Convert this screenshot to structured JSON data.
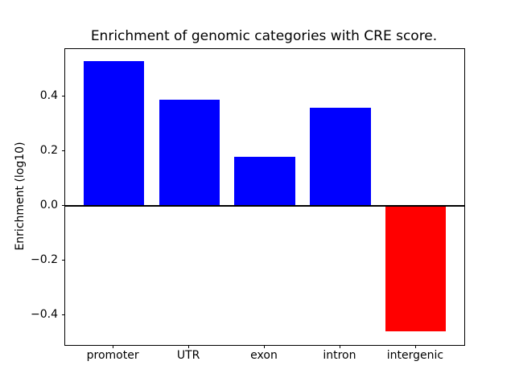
{
  "chart_data": {
    "type": "bar",
    "title": "Enrichment of genomic categories with CRE score.",
    "ylabel": "Enrichment (log10)",
    "xlabel": "",
    "categories": [
      "promoter",
      "UTR",
      "exon",
      "intron",
      "intergenic"
    ],
    "values": [
      0.53,
      0.39,
      0.18,
      0.36,
      -0.46
    ],
    "bar_colors": [
      "#0000ff",
      "#0000ff",
      "#0000ff",
      "#0000ff",
      "#ff0000"
    ],
    "positive_color": "#0000ff",
    "negative_color": "#ff0000",
    "yticks": [
      0.4,
      0.2,
      0.0,
      -0.2,
      -0.4
    ],
    "ytick_labels": [
      "0.4",
      "0.2",
      "0.0",
      "−0.2",
      "−0.4"
    ],
    "ylim": [
      -0.51,
      0.574
    ],
    "xlim": [
      -0.64,
      4.64
    ],
    "bar_width_units": 0.8,
    "zero_line": true,
    "grid": false,
    "legend_position": "none",
    "axis_color": "#000000",
    "background_color": "#ffffff"
  }
}
